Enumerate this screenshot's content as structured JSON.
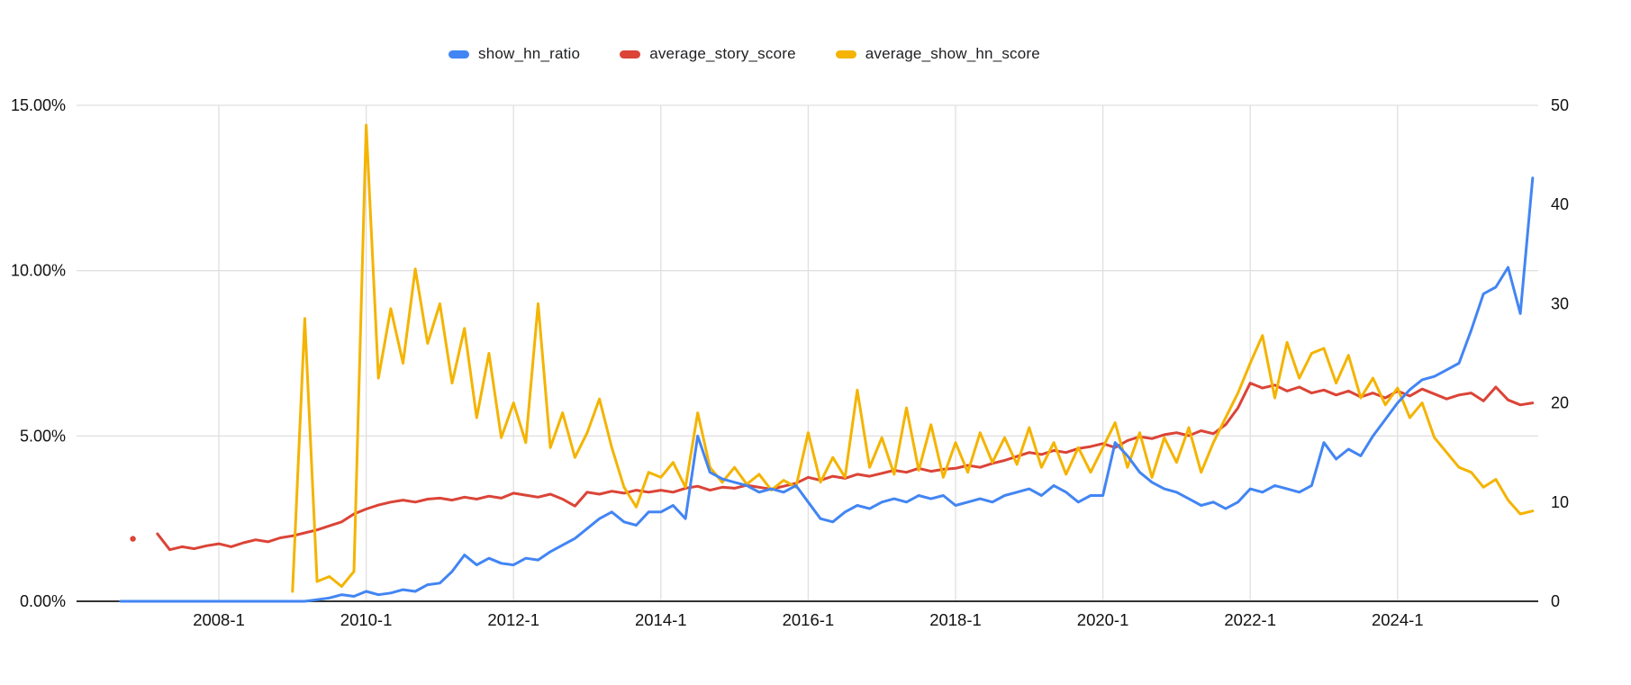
{
  "chart_data": {
    "type": "line",
    "title": "",
    "legend_position": "top",
    "grid": true,
    "x_tick_labels": [
      "2008-1",
      "2010-1",
      "2012-1",
      "2014-1",
      "2016-1",
      "2018-1",
      "2020-1",
      "2022-1",
      "2024-1"
    ],
    "y_left": {
      "range": [
        0,
        15
      ],
      "unit": "percent",
      "ticks": [
        {
          "v": 0,
          "label": "0.00%"
        },
        {
          "v": 5,
          "label": "5.00%"
        },
        {
          "v": 10,
          "label": "10.00%"
        },
        {
          "v": 15,
          "label": "15.00%"
        }
      ]
    },
    "y_right": {
      "range": [
        0,
        50
      ],
      "ticks": [
        {
          "v": 0,
          "label": "0"
        },
        {
          "v": 10,
          "label": "10"
        },
        {
          "v": 20,
          "label": "20"
        },
        {
          "v": 30,
          "label": "30"
        },
        {
          "v": 40,
          "label": "40"
        },
        {
          "v": 50,
          "label": "50"
        }
      ]
    },
    "x": [
      "2006-9",
      "2006-11",
      "2007-1",
      "2007-3",
      "2007-5",
      "2007-7",
      "2007-9",
      "2007-11",
      "2008-1",
      "2008-3",
      "2008-5",
      "2008-7",
      "2008-9",
      "2008-11",
      "2009-1",
      "2009-3",
      "2009-5",
      "2009-7",
      "2009-9",
      "2009-11",
      "2010-1",
      "2010-3",
      "2010-5",
      "2010-7",
      "2010-9",
      "2010-11",
      "2011-1",
      "2011-3",
      "2011-5",
      "2011-7",
      "2011-9",
      "2011-11",
      "2012-1",
      "2012-3",
      "2012-5",
      "2012-7",
      "2012-9",
      "2012-11",
      "2013-1",
      "2013-3",
      "2013-5",
      "2013-7",
      "2013-9",
      "2013-11",
      "2014-1",
      "2014-3",
      "2014-5",
      "2014-7",
      "2014-9",
      "2014-11",
      "2015-1",
      "2015-3",
      "2015-5",
      "2015-7",
      "2015-9",
      "2015-11",
      "2016-1",
      "2016-3",
      "2016-5",
      "2016-7",
      "2016-9",
      "2016-11",
      "2017-1",
      "2017-3",
      "2017-5",
      "2017-7",
      "2017-9",
      "2017-11",
      "2018-1",
      "2018-3",
      "2018-5",
      "2018-7",
      "2018-9",
      "2018-11",
      "2019-1",
      "2019-3",
      "2019-5",
      "2019-7",
      "2019-9",
      "2019-11",
      "2020-1",
      "2020-3",
      "2020-5",
      "2020-7",
      "2020-9",
      "2020-11",
      "2021-1",
      "2021-3",
      "2021-5",
      "2021-7",
      "2021-9",
      "2021-11",
      "2022-1",
      "2022-3",
      "2022-5",
      "2022-7",
      "2022-9",
      "2022-11",
      "2023-1",
      "2023-3",
      "2023-5",
      "2023-7",
      "2023-9",
      "2023-11",
      "2024-1",
      "2024-3",
      "2024-5",
      "2024-7",
      "2024-9",
      "2024-11",
      "2025-1",
      "2025-3",
      "2025-5",
      "2025-7",
      "2025-9",
      "2025-11"
    ],
    "series": [
      {
        "name": "show_hn_ratio",
        "color": "#4285F4",
        "axis": "left",
        "values": [
          0,
          0,
          0,
          0,
          0,
          0,
          0,
          0,
          0,
          0,
          0,
          0,
          0,
          0,
          0,
          0,
          0.05,
          0.1,
          0.2,
          0.15,
          0.3,
          0.2,
          0.25,
          0.35,
          0.3,
          0.5,
          0.55,
          0.9,
          1.4,
          1.1,
          1.3,
          1.15,
          1.1,
          1.3,
          1.25,
          1.5,
          1.7,
          1.9,
          2.2,
          2.5,
          2.7,
          2.4,
          2.3,
          2.7,
          2.7,
          2.9,
          2.5,
          5.0,
          3.9,
          3.7,
          3.6,
          3.5,
          3.3,
          3.4,
          3.3,
          3.5,
          3.0,
          2.5,
          2.4,
          2.7,
          2.9,
          2.8,
          3.0,
          3.1,
          3.0,
          3.2,
          3.1,
          3.2,
          2.9,
          3.0,
          3.1,
          3.0,
          3.2,
          3.3,
          3.4,
          3.2,
          3.5,
          3.3,
          3.0,
          3.2,
          3.2,
          4.8,
          4.4,
          3.9,
          3.6,
          3.4,
          3.3,
          3.1,
          2.9,
          3.0,
          2.8,
          3.0,
          3.4,
          3.3,
          3.5,
          3.4,
          3.3,
          3.5,
          4.8,
          4.3,
          4.6,
          4.4,
          5.0,
          5.5,
          6.0,
          6.4,
          6.7,
          6.8,
          7.0,
          7.2,
          8.2,
          9.3,
          9.5,
          10.1,
          8.7,
          12.8
        ]
      },
      {
        "name": "average_story_score",
        "color": "#DB4437",
        "axis": "right",
        "values": [
          null,
          6.3,
          null,
          6.8,
          5.2,
          5.5,
          5.3,
          5.6,
          5.8,
          5.5,
          5.9,
          6.2,
          6.0,
          6.4,
          6.6,
          6.9,
          7.2,
          7.6,
          8.0,
          8.8,
          9.3,
          9.7,
          10.0,
          10.2,
          10.0,
          10.3,
          10.4,
          10.2,
          10.5,
          10.3,
          10.6,
          10.4,
          10.9,
          10.7,
          10.5,
          10.8,
          10.3,
          9.6,
          11.0,
          10.8,
          11.1,
          10.9,
          11.2,
          11.0,
          11.2,
          11.0,
          11.4,
          11.6,
          11.2,
          11.5,
          11.4,
          11.7,
          11.5,
          11.3,
          11.6,
          11.9,
          12.5,
          12.2,
          12.6,
          12.4,
          12.8,
          12.6,
          12.9,
          13.2,
          13.0,
          13.4,
          13.1,
          13.3,
          13.4,
          13.7,
          13.5,
          13.9,
          14.2,
          14.6,
          15.0,
          14.8,
          15.2,
          15.0,
          15.4,
          15.6,
          15.9,
          15.5,
          16.2,
          16.6,
          16.4,
          16.8,
          17.0,
          16.7,
          17.2,
          16.9,
          17.8,
          19.5,
          22.0,
          21.5,
          21.8,
          21.2,
          21.6,
          21.0,
          21.3,
          20.8,
          21.2,
          20.6,
          21.0,
          20.5,
          21.2,
          20.7,
          21.4,
          20.9,
          20.4,
          20.8,
          21.0,
          20.2,
          21.6,
          20.3,
          19.8,
          20.0
        ]
      },
      {
        "name": "average_show_hn_score",
        "color": "#F4B400",
        "axis": "right",
        "values": [
          null,
          null,
          null,
          null,
          null,
          null,
          null,
          null,
          null,
          null,
          null,
          null,
          null,
          null,
          1.0,
          28.5,
          2.0,
          2.5,
          1.5,
          3.0,
          48.0,
          22.5,
          29.5,
          24.0,
          33.5,
          26.0,
          30.0,
          22.0,
          27.5,
          18.5,
          25.0,
          16.5,
          20.0,
          16.0,
          30.0,
          15.5,
          19.0,
          14.5,
          17.0,
          20.4,
          15.5,
          11.5,
          9.5,
          13.0,
          12.5,
          14.0,
          11.5,
          19.0,
          13.5,
          12.0,
          13.5,
          11.8,
          12.8,
          11.2,
          12.2,
          11.5,
          17.0,
          12.0,
          14.5,
          12.5,
          21.3,
          13.5,
          16.5,
          12.8,
          19.5,
          13.2,
          17.8,
          12.5,
          16.0,
          13.0,
          17.0,
          14.0,
          16.5,
          13.8,
          17.5,
          13.5,
          16.0,
          12.8,
          15.5,
          13.0,
          15.5,
          18.0,
          13.5,
          17.0,
          12.5,
          16.5,
          14.0,
          17.5,
          13.0,
          16.0,
          18.5,
          21.0,
          24.0,
          26.8,
          20.5,
          26.1,
          22.5,
          25.0,
          25.5,
          22.0,
          24.8,
          20.5,
          22.5,
          19.8,
          21.5,
          18.5,
          20.0,
          16.5,
          15.0,
          13.5,
          13.0,
          11.5,
          12.3,
          10.2,
          8.8,
          9.1
        ]
      }
    ],
    "colors": {
      "gridline": "#e0e0e0",
      "axis_line": "#333333",
      "tick_text": "#111111"
    }
  }
}
